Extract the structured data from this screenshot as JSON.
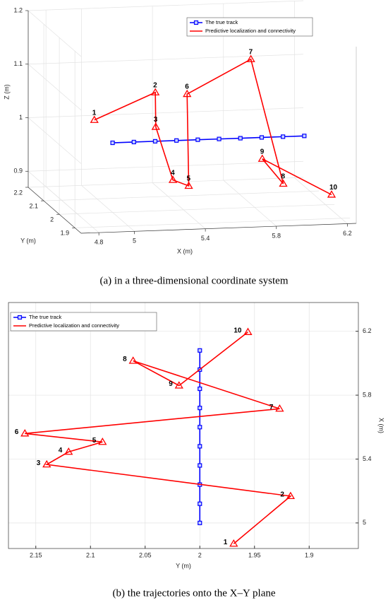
{
  "chart_data": [
    {
      "type": "line3d",
      "xlabel": "X (m)",
      "ylabel": "Y (m)",
      "zlabel": "Z (m)",
      "caption": "(a) in a three-dimensional coordinate system",
      "xlim": [
        4.7,
        6.25
      ],
      "ylim": [
        1.86,
        2.2
      ],
      "zlim": [
        0.87,
        1.2
      ],
      "xticks": [
        4.8,
        5,
        5.4,
        5.8,
        6.2
      ],
      "yticks": [
        1.9,
        2,
        2.1,
        2.2
      ],
      "zticks": [
        0.9,
        1,
        1.1,
        1.2
      ],
      "grid": true,
      "legend": "upper right",
      "series": [
        {
          "name": "The true track",
          "color": "#0000ff",
          "marker": "square",
          "x": [
            5,
            5.12,
            5.24,
            5.36,
            5.48,
            5.6,
            5.72,
            5.84,
            5.96,
            6.08
          ],
          "y": [
            2,
            2,
            2,
            2,
            2,
            2,
            2,
            2,
            2,
            2
          ],
          "z": [
            1,
            1,
            1,
            1,
            1,
            1,
            1,
            1,
            1,
            1
          ]
        },
        {
          "name": "Predictive localization and connectivity",
          "color": "#ff0000",
          "marker": "triangle",
          "x": [
            4.87,
            5.168,
            5.366,
            5.445,
            5.507,
            5.56,
            5.715,
            6.015,
            5.86,
            6.195
          ],
          "y": [
            1.969,
            1.917,
            2.14,
            2.12,
            2.089,
            2.16,
            1.927,
            2.061,
            2.019,
            1.956
          ],
          "z": [
            1.052,
            1.113,
            0.99,
            0.895,
            0.891,
            1.044,
            1.166,
            0.896,
            0.955,
            0.9
          ],
          "point_labels": [
            "1",
            "2",
            "3",
            "4",
            "5",
            "6",
            "7",
            "8",
            "9",
            "10"
          ]
        }
      ]
    },
    {
      "type": "line",
      "xlabel": "Y (m)",
      "ylabel": "X (m)",
      "caption": "(b) the trajectories onto the X–Y plane",
      "xlim": [
        2.175,
        1.855
      ],
      "ylim": [
        4.84,
        6.38
      ],
      "xticks": [
        2.15,
        2.1,
        2.05,
        2,
        1.95,
        1.9
      ],
      "yticks": [
        5,
        5.4,
        5.8,
        6.2
      ],
      "grid": true,
      "legend": "upper left",
      "y_axis_side": "right",
      "series": [
        {
          "name": "The true track",
          "color": "#0000ff",
          "marker": "square",
          "x": [
            2,
            2,
            2,
            2,
            2,
            2,
            2,
            2,
            2,
            2
          ],
          "values": [
            5,
            5.12,
            5.24,
            5.36,
            5.48,
            5.6,
            5.72,
            5.84,
            5.96,
            6.08
          ]
        },
        {
          "name": "Predictive localization and connectivity",
          "color": "#ff0000",
          "marker": "triangle",
          "x": [
            1.969,
            1.917,
            2.14,
            2.12,
            2.089,
            2.16,
            1.927,
            2.061,
            2.019,
            1.956
          ],
          "values": [
            4.87,
            5.168,
            5.366,
            5.445,
            5.507,
            5.56,
            5.715,
            6.015,
            5.86,
            6.195
          ],
          "point_labels": [
            "1",
            "2",
            "3",
            "4",
            "5",
            "6",
            "7",
            "8",
            "9",
            "10"
          ]
        }
      ]
    }
  ]
}
